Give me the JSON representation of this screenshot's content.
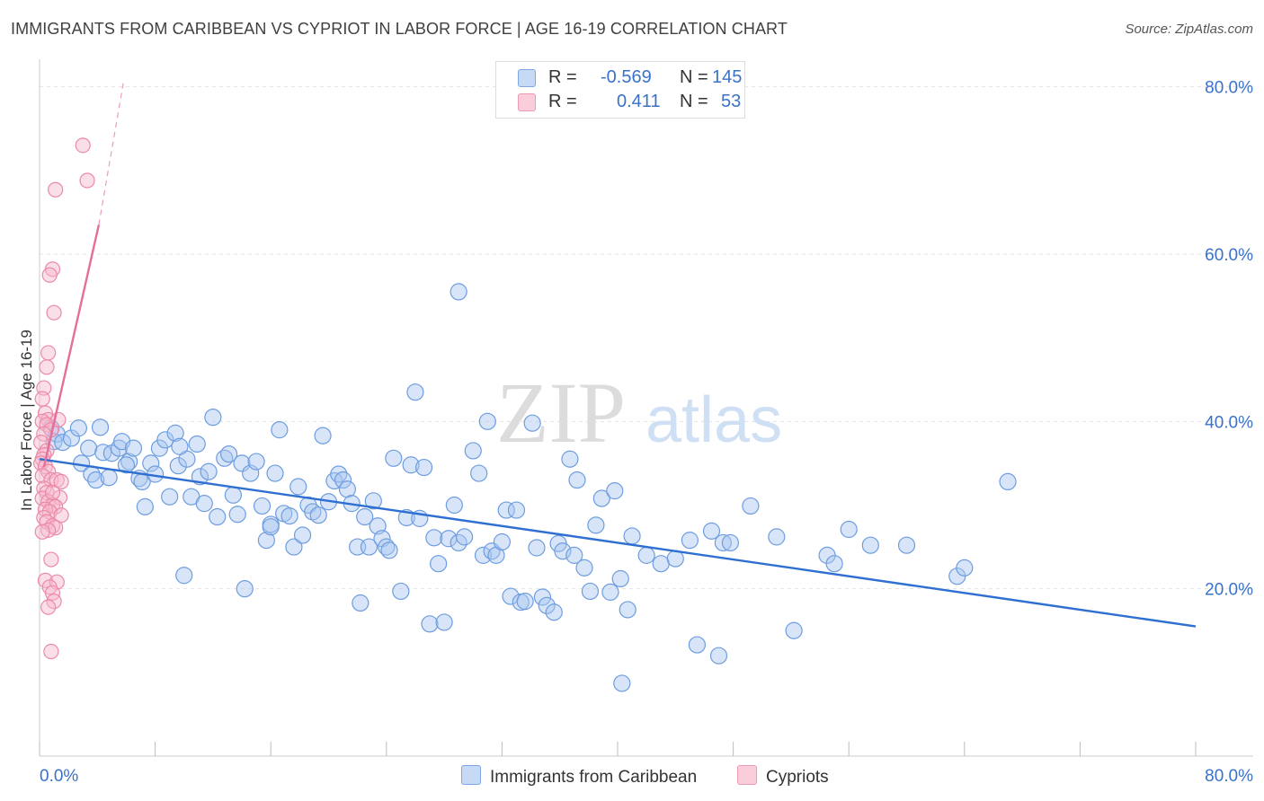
{
  "title": "IMMIGRANTS FROM CARIBBEAN VS CYPRIOT IN LABOR FORCE | AGE 16-19 CORRELATION CHART",
  "source": "Source: ZipAtlas.com",
  "watermark": {
    "zip": "ZIP",
    "atlas": "atlas"
  },
  "legend_stats": {
    "r_label": "R =",
    "n_label": "N =",
    "series1": {
      "r": "-0.569",
      "n": "145"
    },
    "series2": {
      "r": "0.411",
      "n": "53"
    }
  },
  "colors": {
    "blue_fill": "#a9c6ef",
    "blue_stroke": "#6d9de0",
    "blue_line": "#2e6fd1",
    "pink_fill": "#f6b8cb",
    "pink_stroke": "#ea8aa8",
    "pink_line": "#e4709a",
    "grid": "#e3e3e3",
    "tick_label": "#3a72c9"
  },
  "chart_data": {
    "type": "scatter",
    "title": "IMMIGRANTS FROM CARIBBEAN VS CYPRIOT IN LABOR FORCE | AGE 16-19 CORRELATION CHART",
    "xlabel": "",
    "ylabel": "In Labor Force | Age 16-19",
    "xlim": [
      0,
      80
    ],
    "ylim": [
      0,
      82
    ],
    "x_tick_labels": [
      "0.0%",
      "80.0%"
    ],
    "y_ticks": [
      20,
      40,
      60,
      80
    ],
    "y_tick_labels": [
      "20.0%",
      "40.0%",
      "60.0%",
      "80.0%"
    ],
    "grid": true,
    "series": [
      {
        "name": "Immigrants from Caribbean",
        "r": -0.569,
        "n": 145,
        "trend": {
          "x": [
            0,
            80
          ],
          "y": [
            35.5,
            15.5
          ]
        },
        "points": [
          [
            0.8,
            39.2
          ],
          [
            1.2,
            38.5
          ],
          [
            1.0,
            37.6
          ],
          [
            1.6,
            37.5
          ],
          [
            2.2,
            38.0
          ],
          [
            2.7,
            39.2
          ],
          [
            2.9,
            35.0
          ],
          [
            3.4,
            36.8
          ],
          [
            3.6,
            33.7
          ],
          [
            3.9,
            33.0
          ],
          [
            4.4,
            36.3
          ],
          [
            4.8,
            33.3
          ],
          [
            5.0,
            36.2
          ],
          [
            5.5,
            36.8
          ],
          [
            5.7,
            37.6
          ],
          [
            6.2,
            35.2
          ],
          [
            6.5,
            36.8
          ],
          [
            6.9,
            33.2
          ],
          [
            7.1,
            32.8
          ],
          [
            7.3,
            29.8
          ],
          [
            7.7,
            35.0
          ],
          [
            8.0,
            33.7
          ],
          [
            8.3,
            36.8
          ],
          [
            8.7,
            37.8
          ],
          [
            9.0,
            31.0
          ],
          [
            9.4,
            38.6
          ],
          [
            9.6,
            34.7
          ],
          [
            10.0,
            21.6
          ],
          [
            10.2,
            35.5
          ],
          [
            10.5,
            31.0
          ],
          [
            10.9,
            37.3
          ],
          [
            11.1,
            33.4
          ],
          [
            11.4,
            30.2
          ],
          [
            11.7,
            34.0
          ],
          [
            12.0,
            40.5
          ],
          [
            12.3,
            28.6
          ],
          [
            12.8,
            35.6
          ],
          [
            13.1,
            36.1
          ],
          [
            13.4,
            31.2
          ],
          [
            13.7,
            28.9
          ],
          [
            14.0,
            35.0
          ],
          [
            14.2,
            20.0
          ],
          [
            14.6,
            33.8
          ],
          [
            15.0,
            35.2
          ],
          [
            15.4,
            29.9
          ],
          [
            15.7,
            25.8
          ],
          [
            16.0,
            27.7
          ],
          [
            16.3,
            33.8
          ],
          [
            16.6,
            39.0
          ],
          [
            16.9,
            29.0
          ],
          [
            17.3,
            28.7
          ],
          [
            17.6,
            25.0
          ],
          [
            17.9,
            32.2
          ],
          [
            18.2,
            26.4
          ],
          [
            18.6,
            30.0
          ],
          [
            18.9,
            29.2
          ],
          [
            19.3,
            28.8
          ],
          [
            19.6,
            38.3
          ],
          [
            20.0,
            30.4
          ],
          [
            20.4,
            32.9
          ],
          [
            20.7,
            33.7
          ],
          [
            21.0,
            33.0
          ],
          [
            21.3,
            31.9
          ],
          [
            21.6,
            30.2
          ],
          [
            22.0,
            25.0
          ],
          [
            22.2,
            18.3
          ],
          [
            22.5,
            28.6
          ],
          [
            22.8,
            25.0
          ],
          [
            23.1,
            30.5
          ],
          [
            23.4,
            27.5
          ],
          [
            23.7,
            26.0
          ],
          [
            24.0,
            25.0
          ],
          [
            24.2,
            24.6
          ],
          [
            24.5,
            35.6
          ],
          [
            25.0,
            19.7
          ],
          [
            25.4,
            28.5
          ],
          [
            25.7,
            34.8
          ],
          [
            26.0,
            43.5
          ],
          [
            26.3,
            28.4
          ],
          [
            26.6,
            34.5
          ],
          [
            27.0,
            15.8
          ],
          [
            27.3,
            26.1
          ],
          [
            27.6,
            23.0
          ],
          [
            28.0,
            16.0
          ],
          [
            28.3,
            26.0
          ],
          [
            28.7,
            30.0
          ],
          [
            29.0,
            25.5
          ],
          [
            29.4,
            26.2
          ],
          [
            30.0,
            36.5
          ],
          [
            30.4,
            33.8
          ],
          [
            30.7,
            24.0
          ],
          [
            31.0,
            40.0
          ],
          [
            31.3,
            24.5
          ],
          [
            31.6,
            24.0
          ],
          [
            32.0,
            25.6
          ],
          [
            32.3,
            29.4
          ],
          [
            32.6,
            19.1
          ],
          [
            33.0,
            29.4
          ],
          [
            33.3,
            18.4
          ],
          [
            33.6,
            18.5
          ],
          [
            34.1,
            39.8
          ],
          [
            34.4,
            24.9
          ],
          [
            34.8,
            19.0
          ],
          [
            35.1,
            18.0
          ],
          [
            35.6,
            17.2
          ],
          [
            35.9,
            25.4
          ],
          [
            36.2,
            24.5
          ],
          [
            36.7,
            35.5
          ],
          [
            37.2,
            33.0
          ],
          [
            37.7,
            22.5
          ],
          [
            38.1,
            19.7
          ],
          [
            38.5,
            27.6
          ],
          [
            38.9,
            30.8
          ],
          [
            39.5,
            19.6
          ],
          [
            39.8,
            31.7
          ],
          [
            40.2,
            21.2
          ],
          [
            40.7,
            17.5
          ],
          [
            41.0,
            26.3
          ],
          [
            42.0,
            24.0
          ],
          [
            43.0,
            23.0
          ],
          [
            44.0,
            23.6
          ],
          [
            45.0,
            25.8
          ],
          [
            46.5,
            26.9
          ],
          [
            47.0,
            12.0
          ],
          [
            47.3,
            25.5
          ],
          [
            47.8,
            25.5
          ],
          [
            49.2,
            29.9
          ],
          [
            51.0,
            26.2
          ],
          [
            52.2,
            15.0
          ],
          [
            54.5,
            24.0
          ],
          [
            55.0,
            23.0
          ],
          [
            56.0,
            27.1
          ],
          [
            57.5,
            25.2
          ],
          [
            60.0,
            25.2
          ],
          [
            63.5,
            21.5
          ],
          [
            64.0,
            22.5
          ],
          [
            67.0,
            32.8
          ],
          [
            40.3,
            8.7
          ],
          [
            37.0,
            24.0
          ],
          [
            29.0,
            55.5
          ],
          [
            45.5,
            13.3
          ],
          [
            9.7,
            37.0
          ],
          [
            4.2,
            39.3
          ],
          [
            6.0,
            34.8
          ],
          [
            16.0,
            27.4
          ]
        ]
      },
      {
        "name": "Cypriots",
        "r": 0.411,
        "n": 53,
        "trend": {
          "x": [
            0.3,
            4.1
          ],
          "y": [
            34.5,
            63.5
          ]
        },
        "trend_dashed": {
          "x": [
            4.1,
            5.8
          ],
          "y": [
            63.5,
            80.5
          ]
        },
        "points": [
          [
            3.0,
            73.0
          ],
          [
            3.3,
            68.8
          ],
          [
            1.1,
            67.7
          ],
          [
            0.9,
            58.2
          ],
          [
            0.7,
            57.5
          ],
          [
            1.0,
            53.0
          ],
          [
            0.6,
            48.2
          ],
          [
            0.5,
            46.5
          ],
          [
            0.3,
            44.0
          ],
          [
            0.2,
            42.7
          ],
          [
            0.4,
            41.0
          ],
          [
            0.6,
            40.2
          ],
          [
            0.2,
            40.0
          ],
          [
            0.5,
            39.6
          ],
          [
            0.8,
            39.0
          ],
          [
            0.3,
            38.5
          ],
          [
            0.1,
            37.5
          ],
          [
            0.5,
            36.5
          ],
          [
            0.3,
            36.0
          ],
          [
            0.2,
            35.5
          ],
          [
            0.1,
            35.0
          ],
          [
            0.4,
            34.6
          ],
          [
            0.6,
            34.0
          ],
          [
            0.2,
            33.5
          ],
          [
            0.8,
            33.0
          ],
          [
            1.2,
            33.0
          ],
          [
            1.5,
            32.8
          ],
          [
            0.3,
            32.0
          ],
          [
            0.5,
            31.5
          ],
          [
            0.2,
            30.8
          ],
          [
            1.4,
            30.9
          ],
          [
            0.6,
            30.4
          ],
          [
            0.9,
            30.0
          ],
          [
            1.1,
            29.8
          ],
          [
            0.4,
            29.5
          ],
          [
            0.7,
            29.2
          ],
          [
            1.5,
            28.8
          ],
          [
            0.3,
            28.5
          ],
          [
            0.5,
            28.0
          ],
          [
            0.9,
            27.5
          ],
          [
            1.1,
            27.3
          ],
          [
            0.6,
            27.0
          ],
          [
            0.8,
            23.5
          ],
          [
            0.4,
            21.0
          ],
          [
            1.2,
            20.8
          ],
          [
            0.7,
            20.2
          ],
          [
            0.9,
            19.5
          ],
          [
            1.0,
            18.5
          ],
          [
            0.6,
            17.8
          ],
          [
            0.8,
            12.5
          ],
          [
            1.3,
            40.2
          ],
          [
            0.9,
            31.5
          ],
          [
            0.2,
            26.8
          ]
        ]
      }
    ]
  }
}
